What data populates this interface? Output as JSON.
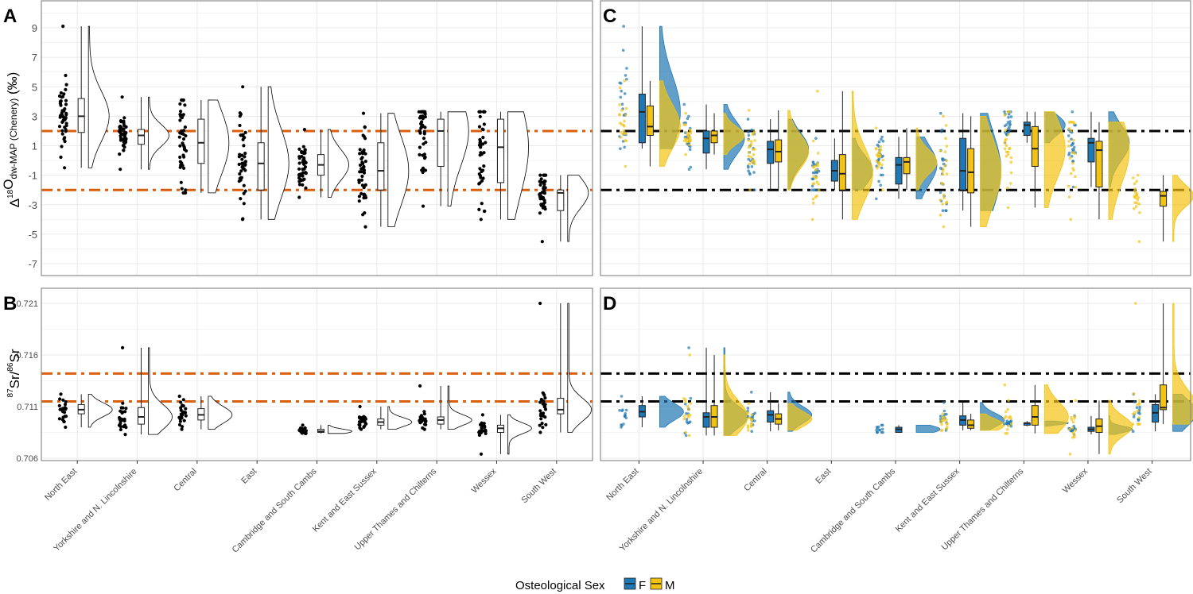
{
  "chart_data": [
    {
      "panel": "A",
      "type": "raincloud",
      "ylabel_main": "Δ",
      "ylabel_sup": "18",
      "ylabel_o": "O",
      "ylabel_sub": "dw-MAP (Chenery)",
      "ylabel_unit": " (‰)",
      "yticks": [
        9,
        7,
        5,
        3,
        1,
        -1,
        -3,
        -5,
        -7
      ],
      "hlines": [
        2,
        -2
      ],
      "hline_color": "#d95f0e",
      "categories": [
        "North East",
        "Yorkshire and N. Lincolnshire",
        "Central",
        "East",
        "Cambridge and South Cambs",
        "Kent and East Sussex",
        "Upper Thames and Chilterns",
        "Wessex",
        "South West"
      ],
      "groups": [
        {
          "min": -0.5,
          "q1": 1.9,
          "median": 3.0,
          "q3": 4.2,
          "max": 9.1
        },
        {
          "min": -0.6,
          "q1": 1.1,
          "median": 1.7,
          "q3": 2.1,
          "max": 4.3
        },
        {
          "min": -2.2,
          "q1": -0.2,
          "median": 1.2,
          "q3": 2.8,
          "max": 4.1
        },
        {
          "min": -4.0,
          "q1": -2.0,
          "median": -0.2,
          "q3": 1.2,
          "max": 5.0
        },
        {
          "min": -2.5,
          "q1": -1.0,
          "median": -0.3,
          "q3": 0.4,
          "max": 2.1
        },
        {
          "min": -4.5,
          "q1": -2.0,
          "median": -0.7,
          "q3": 1.2,
          "max": 3.2
        },
        {
          "min": -3.1,
          "q1": -0.4,
          "median": 2.0,
          "q3": 2.8,
          "max": 3.3
        },
        {
          "min": -4.0,
          "q1": -1.5,
          "median": 0.9,
          "q3": 2.8,
          "max": 3.3
        },
        {
          "min": -5.5,
          "q1": -3.4,
          "median": -2.2,
          "q3": -2.0,
          "max": -1.0
        }
      ]
    },
    {
      "panel": "B",
      "type": "raincloud",
      "ylabel_sup1": "87",
      "ylabel_mid": "Sr/",
      "ylabel_sup2": "86",
      "ylabel_end": "Sr",
      "yticks": [
        0.721,
        0.716,
        0.711,
        0.706
      ],
      "hlines": [
        0.7142,
        0.7115
      ],
      "hline_color": "#d95f0e",
      "groups": [
        {
          "min": 0.709,
          "q1": 0.7103,
          "median": 0.7107,
          "q3": 0.7112,
          "max": 0.7122
        },
        {
          "min": 0.7083,
          "q1": 0.7093,
          "median": 0.71,
          "q3": 0.7109,
          "max": 0.7167
        },
        {
          "min": 0.7088,
          "q1": 0.7097,
          "median": 0.7102,
          "q3": 0.7108,
          "max": 0.712
        },
        null,
        {
          "min": 0.7084,
          "q1": 0.7085,
          "median": 0.7086,
          "q3": 0.7088,
          "max": 0.7092
        },
        {
          "min": 0.7088,
          "q1": 0.7092,
          "median": 0.7095,
          "q3": 0.7098,
          "max": 0.711
        },
        {
          "min": 0.7088,
          "q1": 0.7093,
          "median": 0.7097,
          "q3": 0.71,
          "max": 0.713
        },
        {
          "min": 0.7064,
          "q1": 0.7085,
          "median": 0.7089,
          "q3": 0.7092,
          "max": 0.7102
        },
        {
          "min": 0.7085,
          "q1": 0.7103,
          "median": 0.7107,
          "q3": 0.7118,
          "max": 0.721
        }
      ]
    },
    {
      "panel": "C",
      "type": "raincloud-by-sex",
      "hlines": [
        2,
        -2
      ],
      "hline_color": "#000000",
      "groups": [
        {
          "F": {
            "min": 0.8,
            "q1": 1.2,
            "median": 3.3,
            "q3": 4.5,
            "max": 9.1
          },
          "M": {
            "min": -0.4,
            "q1": 1.7,
            "median": 2.3,
            "q3": 3.7,
            "max": 5.4
          }
        },
        {
          "F": {
            "min": -0.6,
            "q1": 0.5,
            "median": 1.5,
            "q3": 2.0,
            "max": 3.8
          },
          "M": {
            "min": 0.4,
            "q1": 1.2,
            "median": 1.7,
            "q3": 2.0,
            "max": 3.2
          }
        },
        {
          "F": {
            "min": -2.0,
            "q1": -0.2,
            "median": 0.75,
            "q3": 1.3,
            "max": 2.8
          },
          "M": {
            "min": -2.0,
            "q1": -0.1,
            "median": 0.6,
            "q3": 1.4,
            "max": 3.4
          }
        },
        {
          "F": {
            "min": -2.0,
            "q1": -1.4,
            "median": -0.7,
            "q3": 0.0,
            "max": 1.5
          },
          "M": {
            "min": -4.0,
            "q1": -2.0,
            "median": -0.9,
            "q3": 0.4,
            "max": 4.7
          }
        },
        {
          "F": {
            "min": -2.6,
            "q1": -1.6,
            "median": -0.3,
            "q3": 0.2,
            "max": 1.6
          },
          "M": {
            "min": -2.0,
            "q1": -0.9,
            "median": -0.1,
            "q3": 0.2,
            "max": 2.2
          }
        },
        {
          "F": {
            "min": -3.4,
            "q1": -2.0,
            "median": -0.7,
            "q3": 1.5,
            "max": 3.2
          },
          "M": {
            "min": -4.5,
            "q1": -2.2,
            "median": -0.8,
            "q3": 0.8,
            "max": 3.0
          }
        },
        {
          "F": {
            "min": 1.2,
            "q1": 1.7,
            "median": 2.4,
            "q3": 2.6,
            "max": 3.3
          },
          "M": {
            "min": -3.2,
            "q1": -0.4,
            "median": 0.8,
            "q3": 2.3,
            "max": 3.3
          }
        },
        {
          "F": {
            "min": -1.8,
            "q1": -0.1,
            "median": 1.2,
            "q3": 1.5,
            "max": 3.3
          },
          "M": {
            "min": -4.0,
            "q1": -1.8,
            "median": 0.7,
            "q3": 1.3,
            "max": 2.6
          }
        },
        {
          "F": null,
          "M": {
            "min": -5.5,
            "q1": -3.1,
            "median": -2.4,
            "q3": -2.1,
            "max": -1.0
          }
        }
      ]
    },
    {
      "panel": "D",
      "type": "raincloud-by-sex",
      "hlines": [
        0.7142,
        0.7115
      ],
      "hline_color": "#000000",
      "groups": [
        {
          "F": {
            "min": 0.709,
            "q1": 0.71,
            "median": 0.7105,
            "q3": 0.7111,
            "max": 0.712
          },
          "M": null
        },
        {
          "F": {
            "min": 0.7082,
            "q1": 0.709,
            "median": 0.71,
            "q3": 0.7104,
            "max": 0.7167
          },
          "M": {
            "min": 0.7082,
            "q1": 0.709,
            "median": 0.71,
            "q3": 0.7111,
            "max": 0.716
          }
        },
        {
          "F": {
            "min": 0.7086,
            "q1": 0.7095,
            "median": 0.7102,
            "q3": 0.7106,
            "max": 0.7124
          },
          "M": {
            "min": 0.7087,
            "q1": 0.7093,
            "median": 0.7098,
            "q3": 0.7103,
            "max": 0.7113
          }
        },
        {
          "F": null,
          "M": null
        },
        {
          "F": {
            "min": 0.7085,
            "q1": 0.7085,
            "median": 0.7088,
            "q3": 0.709,
            "max": 0.7092
          },
          "M": null
        },
        {
          "F": {
            "min": 0.7087,
            "q1": 0.7092,
            "median": 0.7097,
            "q3": 0.7101,
            "max": 0.7114
          },
          "M": {
            "min": 0.7087,
            "q1": 0.7089,
            "median": 0.7092,
            "q3": 0.7097,
            "max": 0.7103
          }
        },
        {
          "F": {
            "min": 0.7091,
            "q1": 0.7092,
            "median": 0.7094,
            "q3": 0.7094,
            "max": 0.7096
          },
          "M": {
            "min": 0.7084,
            "q1": 0.7092,
            "median": 0.71,
            "q3": 0.7111,
            "max": 0.7131
          }
        },
        {
          "F": {
            "min": 0.7083,
            "q1": 0.7086,
            "median": 0.7088,
            "q3": 0.709,
            "max": 0.7101
          },
          "M": {
            "min": 0.7064,
            "q1": 0.7085,
            "median": 0.7091,
            "q3": 0.7098,
            "max": 0.7116
          }
        },
        {
          "F": {
            "min": 0.7086,
            "q1": 0.7095,
            "median": 0.7104,
            "q3": 0.7112,
            "max": 0.7122
          },
          "M": {
            "min": 0.7093,
            "q1": 0.7107,
            "median": 0.7109,
            "q3": 0.7131,
            "max": 0.721
          }
        }
      ]
    }
  ],
  "panel_labels": [
    "A",
    "B",
    "C",
    "D"
  ],
  "legend": {
    "title": "Osteological Sex",
    "items": [
      {
        "label": "F",
        "color": "#1f78b4"
      },
      {
        "label": "M",
        "color": "#f2c313"
      }
    ]
  },
  "colors": {
    "grid": "#ebebeb",
    "panel_border": "#8c8c8c",
    "points_AB": "#000000"
  }
}
